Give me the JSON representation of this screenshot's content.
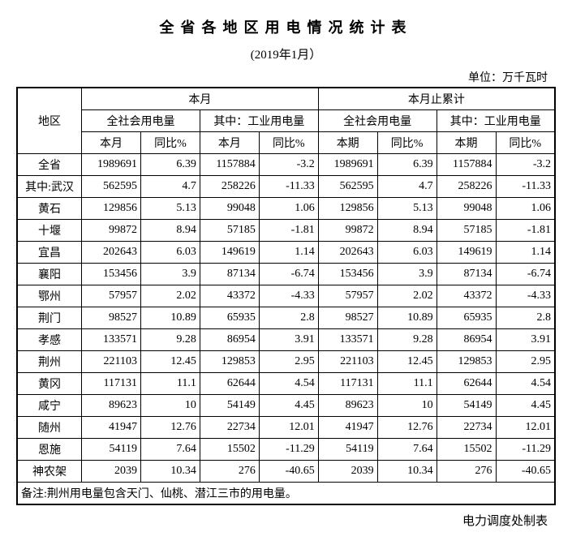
{
  "title": "全省各地区用电情况统计表",
  "subtitle": "(2019年1月）",
  "unit_label": "单位：万千瓦时",
  "header": {
    "region": "地区",
    "this_month": "本月",
    "cumulative": "本月止累计",
    "total_power": "全社会用电量",
    "industrial_power": "其中：工业用电量",
    "current_month": "本月",
    "yoy": "同比%",
    "current_period": "本期"
  },
  "rows": [
    {
      "region": "全省",
      "m_total": "1989691",
      "m_total_yoy": "6.39",
      "m_ind": "1157884",
      "m_ind_yoy": "-3.2",
      "c_total": "1989691",
      "c_total_yoy": "6.39",
      "c_ind": "1157884",
      "c_ind_yoy": "-3.2"
    },
    {
      "region": "其中:武汉",
      "m_total": "562595",
      "m_total_yoy": "4.7",
      "m_ind": "258226",
      "m_ind_yoy": "-11.33",
      "c_total": "562595",
      "c_total_yoy": "4.7",
      "c_ind": "258226",
      "c_ind_yoy": "-11.33"
    },
    {
      "region": "黄石",
      "m_total": "129856",
      "m_total_yoy": "5.13",
      "m_ind": "99048",
      "m_ind_yoy": "1.06",
      "c_total": "129856",
      "c_total_yoy": "5.13",
      "c_ind": "99048",
      "c_ind_yoy": "1.06"
    },
    {
      "region": "十堰",
      "m_total": "99872",
      "m_total_yoy": "8.94",
      "m_ind": "57185",
      "m_ind_yoy": "-1.81",
      "c_total": "99872",
      "c_total_yoy": "8.94",
      "c_ind": "57185",
      "c_ind_yoy": "-1.81"
    },
    {
      "region": "宜昌",
      "m_total": "202643",
      "m_total_yoy": "6.03",
      "m_ind": "149619",
      "m_ind_yoy": "1.14",
      "c_total": "202643",
      "c_total_yoy": "6.03",
      "c_ind": "149619",
      "c_ind_yoy": "1.14"
    },
    {
      "region": "襄阳",
      "m_total": "153456",
      "m_total_yoy": "3.9",
      "m_ind": "87134",
      "m_ind_yoy": "-6.74",
      "c_total": "153456",
      "c_total_yoy": "3.9",
      "c_ind": "87134",
      "c_ind_yoy": "-6.74"
    },
    {
      "region": "鄂州",
      "m_total": "57957",
      "m_total_yoy": "2.02",
      "m_ind": "43372",
      "m_ind_yoy": "-4.33",
      "c_total": "57957",
      "c_total_yoy": "2.02",
      "c_ind": "43372",
      "c_ind_yoy": "-4.33"
    },
    {
      "region": "荆门",
      "m_total": "98527",
      "m_total_yoy": "10.89",
      "m_ind": "65935",
      "m_ind_yoy": "2.8",
      "c_total": "98527",
      "c_total_yoy": "10.89",
      "c_ind": "65935",
      "c_ind_yoy": "2.8"
    },
    {
      "region": "孝感",
      "m_total": "133571",
      "m_total_yoy": "9.28",
      "m_ind": "86954",
      "m_ind_yoy": "3.91",
      "c_total": "133571",
      "c_total_yoy": "9.28",
      "c_ind": "86954",
      "c_ind_yoy": "3.91"
    },
    {
      "region": "荆州",
      "m_total": "221103",
      "m_total_yoy": "12.45",
      "m_ind": "129853",
      "m_ind_yoy": "2.95",
      "c_total": "221103",
      "c_total_yoy": "12.45",
      "c_ind": "129853",
      "c_ind_yoy": "2.95"
    },
    {
      "region": "黄冈",
      "m_total": "117131",
      "m_total_yoy": "11.1",
      "m_ind": "62644",
      "m_ind_yoy": "4.54",
      "c_total": "117131",
      "c_total_yoy": "11.1",
      "c_ind": "62644",
      "c_ind_yoy": "4.54"
    },
    {
      "region": "咸宁",
      "m_total": "89623",
      "m_total_yoy": "10",
      "m_ind": "54149",
      "m_ind_yoy": "4.45",
      "c_total": "89623",
      "c_total_yoy": "10",
      "c_ind": "54149",
      "c_ind_yoy": "4.45"
    },
    {
      "region": "随州",
      "m_total": "41947",
      "m_total_yoy": "12.76",
      "m_ind": "22734",
      "m_ind_yoy": "12.01",
      "c_total": "41947",
      "c_total_yoy": "12.76",
      "c_ind": "22734",
      "c_ind_yoy": "12.01"
    },
    {
      "region": "恩施",
      "m_total": "54119",
      "m_total_yoy": "7.64",
      "m_ind": "15502",
      "m_ind_yoy": "-11.29",
      "c_total": "54119",
      "c_total_yoy": "7.64",
      "c_ind": "15502",
      "c_ind_yoy": "-11.29"
    },
    {
      "region": "神农架",
      "m_total": "2039",
      "m_total_yoy": "10.34",
      "m_ind": "276",
      "m_ind_yoy": "-40.65",
      "c_total": "2039",
      "c_total_yoy": "10.34",
      "c_ind": "276",
      "c_ind_yoy": "-40.65"
    }
  ],
  "note": "备注:荆州用电量包含天门、仙桃、潜江三市的用电量。",
  "footer": "电力调度处制表",
  "styles": {
    "col_widths_pct": [
      12,
      11,
      11,
      11,
      11,
      11,
      11,
      11,
      11
    ],
    "title_fontsize": 18,
    "subtitle_fontsize": 15,
    "body_fontsize": 14,
    "border_color": "#000000",
    "background": "#ffffff",
    "text_color": "#000000"
  }
}
